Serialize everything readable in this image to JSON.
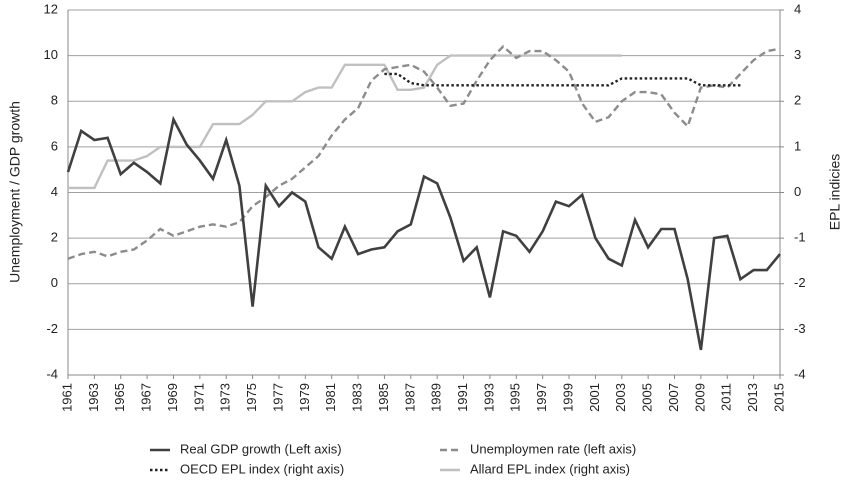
{
  "chart_data": {
    "type": "line",
    "x": [
      1961,
      1962,
      1963,
      1964,
      1965,
      1966,
      1967,
      1968,
      1969,
      1970,
      1971,
      1972,
      1973,
      1974,
      1975,
      1976,
      1977,
      1978,
      1979,
      1980,
      1981,
      1982,
      1983,
      1984,
      1985,
      1986,
      1987,
      1988,
      1989,
      1990,
      1991,
      1992,
      1993,
      1994,
      1995,
      1996,
      1997,
      1998,
      1999,
      2000,
      2001,
      2002,
      2003,
      2004,
      2005,
      2006,
      2007,
      2008,
      2009,
      2010,
      2011,
      2012,
      2013,
      2014,
      2015
    ],
    "xlim": [
      1961,
      2015
    ],
    "xticks": [
      1961,
      1963,
      1965,
      1967,
      1969,
      1971,
      1973,
      1975,
      1977,
      1979,
      1981,
      1983,
      1985,
      1987,
      1989,
      1991,
      1993,
      1995,
      1997,
      1999,
      2001,
      2003,
      2005,
      2007,
      2009,
      2011,
      2013,
      2015
    ],
    "ylim": [
      -4,
      12
    ],
    "yticks": [
      -4,
      -2,
      0,
      2,
      4,
      6,
      8,
      10,
      12
    ],
    "y2lim": [
      -4,
      4
    ],
    "y2ticks": [
      -4,
      -3,
      -2,
      -1,
      0,
      1,
      2,
      3,
      4
    ],
    "ylabel": "Unemployment / GDP growth",
    "y2label": "EPL indicies",
    "grid": true,
    "series": [
      {
        "name": "Real GDP growth (Left axis)",
        "color": "#404040",
        "style": "solid",
        "values": [
          4.9,
          6.7,
          6.3,
          6.4,
          4.8,
          5.3,
          4.9,
          4.4,
          7.2,
          6.1,
          5.4,
          4.6,
          6.3,
          4.3,
          -1.0,
          4.3,
          3.4,
          4.0,
          3.6,
          1.6,
          1.1,
          2.5,
          1.3,
          1.5,
          1.6,
          2.3,
          2.6,
          4.7,
          4.4,
          2.9,
          1.0,
          1.6,
          -0.6,
          2.3,
          2.1,
          1.4,
          2.3,
          3.6,
          3.4,
          3.9,
          2.0,
          1.1,
          0.8,
          2.8,
          1.6,
          2.4,
          2.4,
          0.2,
          -2.9,
          2.0,
          2.1,
          0.2,
          0.6,
          0.6,
          1.3
        ]
      },
      {
        "name": "Unemploymen rate (left axis)",
        "color": "#8c8c8c",
        "style": "dashed",
        "values": [
          1.1,
          1.3,
          1.4,
          1.2,
          1.4,
          1.5,
          1.9,
          2.4,
          2.1,
          2.3,
          2.5,
          2.6,
          2.5,
          2.7,
          3.4,
          3.8,
          4.3,
          4.6,
          5.1,
          5.6,
          6.5,
          7.2,
          7.7,
          8.9,
          9.4,
          9.5,
          9.6,
          9.3,
          8.6,
          7.8,
          7.9,
          8.9,
          9.8,
          10.4,
          9.9,
          10.2,
          10.2,
          9.8,
          9.3,
          7.9,
          7.1,
          7.3,
          8.0,
          8.4,
          8.4,
          8.3,
          7.5,
          6.9,
          8.6,
          8.7,
          8.6,
          9.2,
          9.8,
          10.2,
          10.3
        ]
      },
      {
        "name": "OECD EPL index (right axis)",
        "color": "#222222",
        "style": "dotted",
        "axis": "y2",
        "values": [
          null,
          null,
          null,
          null,
          null,
          null,
          null,
          null,
          null,
          null,
          null,
          null,
          null,
          null,
          null,
          null,
          null,
          null,
          null,
          null,
          null,
          null,
          null,
          null,
          2.6,
          2.6,
          2.4,
          2.35,
          2.35,
          2.35,
          2.35,
          2.35,
          2.35,
          2.35,
          2.35,
          2.35,
          2.35,
          2.35,
          2.35,
          2.35,
          2.35,
          2.35,
          2.5,
          2.5,
          2.5,
          2.5,
          2.5,
          2.5,
          2.35,
          2.35,
          2.35,
          2.35,
          null,
          null,
          null
        ]
      },
      {
        "name": "Allard EPL index (right axis)",
        "color": "#c0c0c0",
        "style": "solid",
        "axis": "y2",
        "values": [
          0.1,
          0.1,
          0.1,
          0.7,
          0.7,
          0.7,
          0.8,
          1.0,
          1.0,
          1.0,
          1.0,
          1.5,
          1.5,
          1.5,
          1.7,
          2.0,
          2.0,
          2.0,
          2.2,
          2.3,
          2.3,
          2.8,
          2.8,
          2.8,
          2.8,
          2.25,
          2.25,
          2.3,
          2.8,
          3.0,
          3.0,
          3.0,
          3.0,
          3.0,
          3.0,
          3.0,
          3.0,
          3.0,
          3.0,
          3.0,
          3.0,
          3.0,
          3.0,
          null,
          null,
          null,
          null,
          null,
          null,
          null,
          null,
          null,
          null,
          null,
          null
        ]
      }
    ]
  }
}
